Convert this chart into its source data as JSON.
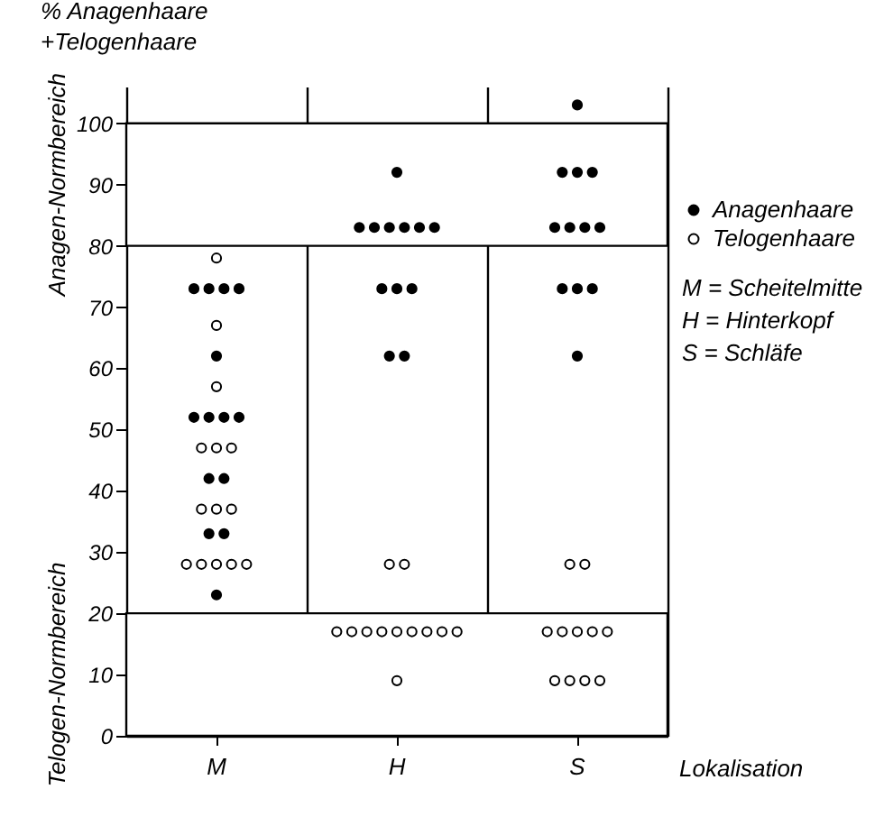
{
  "chart_data": {
    "type": "scatter",
    "ylabel": "% Anagenhaare\n+Telogenhaare",
    "xlabel": "Lokalisation",
    "categories": [
      "M",
      "H",
      "S"
    ],
    "series": [
      {
        "name": "Anagenhaare",
        "color": "#000000",
        "x": [
          "M",
          "M",
          "M",
          "M",
          "M",
          "M",
          "M",
          "M",
          "M",
          "M",
          "M",
          "M",
          "M",
          "M",
          "H",
          "H",
          "H",
          "H",
          "H",
          "H",
          "H",
          "H",
          "H",
          "H",
          "H",
          "H",
          "S",
          "S",
          "S",
          "S",
          "S",
          "S",
          "S",
          "S",
          "S",
          "S",
          "S",
          "S"
        ],
        "values": [
          73,
          73,
          73,
          73,
          62,
          52,
          52,
          52,
          52,
          42,
          42,
          33,
          33,
          23,
          92,
          83,
          83,
          83,
          83,
          83,
          83,
          73,
          73,
          73,
          62,
          62,
          103,
          92,
          92,
          92,
          83,
          83,
          83,
          83,
          73,
          73,
          73,
          62
        ]
      },
      {
        "name": "Telogenhaare",
        "color": "#ffffff",
        "x": [
          "M",
          "M",
          "M",
          "M",
          "M",
          "M",
          "M",
          "M",
          "M",
          "M",
          "M",
          "M",
          "M",
          "M",
          "H",
          "H",
          "H",
          "H",
          "H",
          "H",
          "H",
          "H",
          "H",
          "H",
          "H",
          "H",
          "S",
          "S",
          "S",
          "S",
          "S",
          "S",
          "S",
          "S",
          "S",
          "S",
          "S"
        ],
        "values": [
          78,
          67,
          57,
          47,
          47,
          47,
          37,
          37,
          37,
          28,
          28,
          28,
          28,
          28,
          28,
          28,
          17,
          17,
          17,
          17,
          17,
          17,
          17,
          17,
          17,
          9,
          28,
          28,
          17,
          17,
          17,
          17,
          17,
          9,
          9,
          9,
          9
        ]
      }
    ],
    "ylim": [
      0,
      106
    ],
    "yticks": [
      0,
      10,
      20,
      30,
      40,
      50,
      60,
      70,
      80,
      90,
      100
    ],
    "bands": [
      {
        "axis": "y",
        "from": 80,
        "to": 100,
        "label": "Anagen-Normbereich",
        "color": "#ffffff"
      },
      {
        "axis": "y",
        "from": 0,
        "to": 20,
        "label": "Telogen-Normbereich",
        "color": "#ffffff"
      }
    ],
    "annotations": [
      "M = Scheitelmitte",
      "H = Hinterkopf",
      "S = Schläfe"
    ],
    "marker": "circle",
    "grid": "x",
    "legend": "right"
  }
}
